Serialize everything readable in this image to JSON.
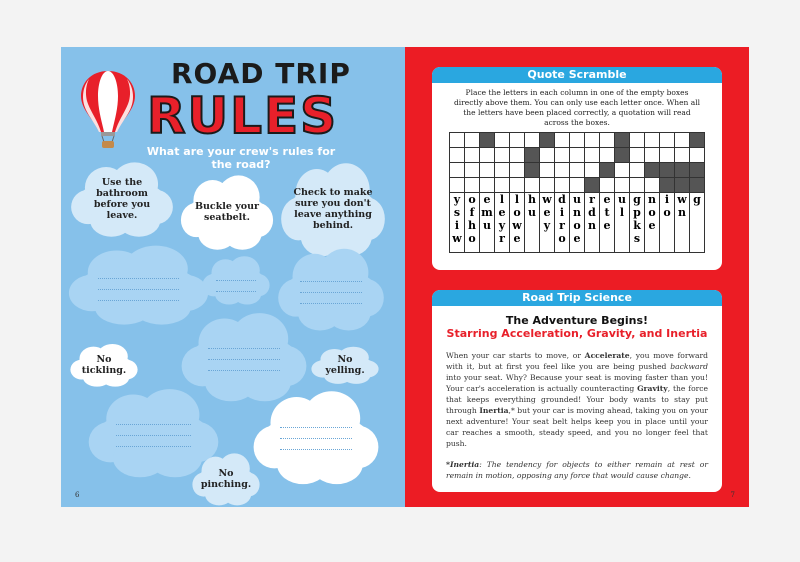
{
  "left_page": {
    "title_line1": "ROAD TRIP",
    "title_line2": "RULES",
    "subtitle": "What are your crew's rules for the road?",
    "clouds": [
      "Use the bathroom before you leave.",
      "Buckle your seatbelt.",
      "Check to make sure you don't leave anything behind.",
      "No tickling.",
      "No yelling.",
      "No pinching."
    ],
    "page_number": "6"
  },
  "right_page": {
    "quote_scramble": {
      "header": "Quote Scramble",
      "instructions": "Place the letters in each column in one of the empty boxes directly above them. You can only use each letter once. When all the letters have been placed correctly, a quotation will read across the boxes.",
      "dark_cells": [
        [
          3,
          7,
          12,
          17
        ],
        [
          6,
          12
        ],
        [
          6,
          11,
          14,
          15,
          16,
          17
        ],
        [
          10,
          15,
          16,
          17
        ]
      ],
      "columns": [
        "ysiw",
        "ofho",
        "emu",
        "leyr",
        "lowe",
        "hu",
        "wey",
        "diro",
        "unoe",
        "rdn",
        "ete",
        "ul",
        "gpks",
        "noe",
        "io",
        "wn",
        "g"
      ]
    },
    "science": {
      "header": "Road Trip Science",
      "title": "The Adventure Begins!",
      "subtitle": "Starring Acceleration, Gravity, and Inertia",
      "p1": "When your car starts to move, or ",
      "b1": "Accelerate",
      "p2": ", you move forward with it, but at first you feel like you are being pushed ",
      "i1": "backward",
      "p3": " into your seat. Why? Because your seat is moving faster than you! Your car's acceleration is actually counteracting ",
      "b2": "Gravity",
      "p4": ", the force that keeps everything grounded! Your body wants to stay put through ",
      "b3": "Inertia",
      "p5": ",* but your car is moving ahead, taking you on your next adventure! Your seat belt helps keep you in place until your car reaches a smooth, steady speed, and you no longer feel that push.",
      "footnote_term": "*Inertia",
      "footnote": ": The tendency for objects to either remain at rest or remain in motion, opposing any force that would cause change."
    },
    "page_number": "7"
  },
  "colors": {
    "sky": "#86c1ea",
    "red": "#ec1c24",
    "header_blue": "#2aa7e0"
  }
}
